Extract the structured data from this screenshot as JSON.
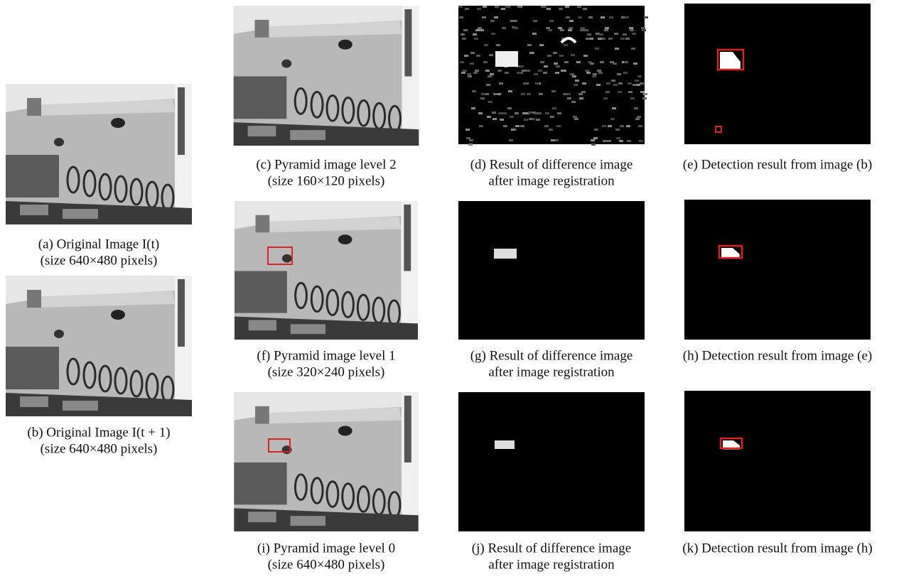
{
  "panels": [
    {
      "caption": [
        "(a) Original Image I(t)",
        "(size 640×480 pixels)"
      ]
    },
    {
      "caption": [
        "(b) Original Image I(t + 1)",
        "(size 640×480 pixels)"
      ]
    },
    {
      "caption": [
        "(c) Pyramid image level 2",
        "(size 160×120 pixels)"
      ]
    },
    {
      "caption": [
        "(d) Result of difference image",
        "after image registration"
      ]
    },
    {
      "caption": [
        "(e) Detection result from image (b)"
      ]
    },
    {
      "caption": [
        "(f) Pyramid image level 1",
        "(size 320×240 pixels)"
      ]
    },
    {
      "caption": [
        "(g) Result of difference image",
        "after image registration"
      ]
    },
    {
      "caption": [
        "(h) Detection result from image (e)"
      ]
    },
    {
      "caption": [
        "(i) Pyramid image level 0",
        "(size 640×480 pixels)"
      ]
    },
    {
      "caption": [
        "(j) Result of difference image",
        "after image registration"
      ]
    },
    {
      "caption": [
        "(k) Detection result from image (h)"
      ]
    }
  ]
}
